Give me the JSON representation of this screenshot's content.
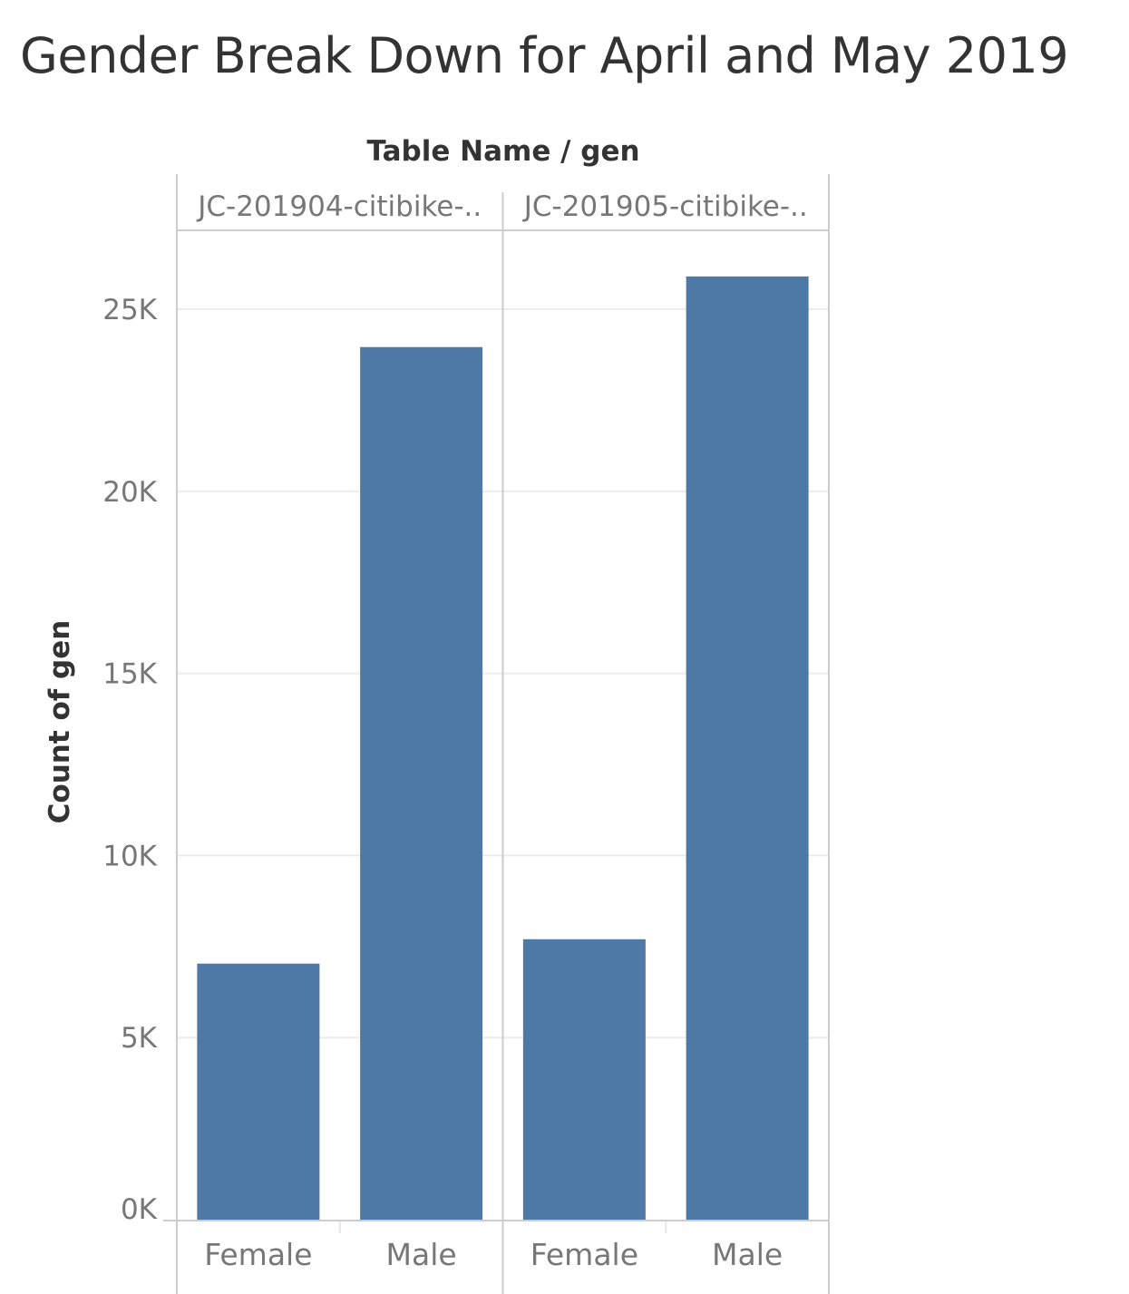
{
  "chart_data": {
    "type": "bar",
    "title": "Gender Break Down for April and May 2019",
    "column_header": "Table Name / gen",
    "ylabel": "Count of gen",
    "xlabel": "",
    "ylim": [
      0,
      26500
    ],
    "y_ticks": [
      {
        "value": 0,
        "label": "0K"
      },
      {
        "value": 5000,
        "label": "5K"
      },
      {
        "value": 10000,
        "label": "10K"
      },
      {
        "value": 15000,
        "label": "15K"
      },
      {
        "value": 20000,
        "label": "20K"
      },
      {
        "value": 25000,
        "label": "25K"
      }
    ],
    "grid": true,
    "bar_color": "#4e79a7",
    "panels": [
      {
        "label": "JC-201904-citibike-..",
        "categories": [
          "Female",
          "Male"
        ],
        "values": [
          7030,
          23960
        ]
      },
      {
        "label": "JC-201905-citibike-..",
        "categories": [
          "Female",
          "Male"
        ],
        "values": [
          7700,
          25900
        ]
      }
    ]
  }
}
